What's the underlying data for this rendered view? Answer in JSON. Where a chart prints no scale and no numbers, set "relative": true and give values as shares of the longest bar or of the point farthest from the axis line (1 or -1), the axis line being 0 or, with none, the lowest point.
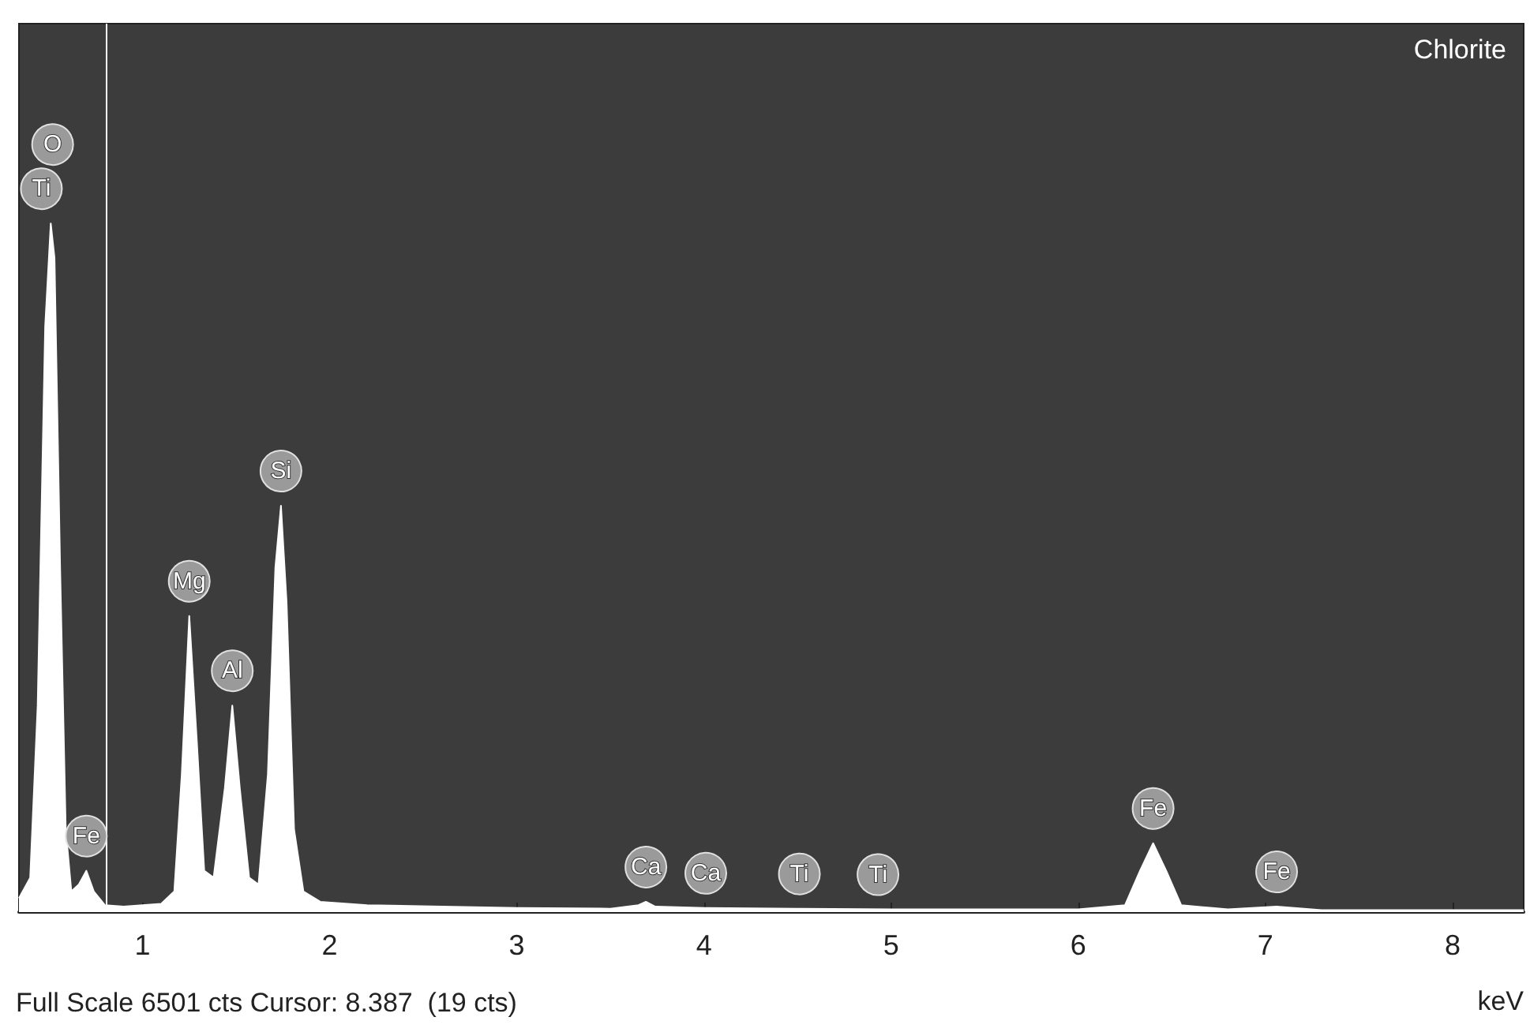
{
  "chart_data": {
    "type": "area",
    "title": "Chlorite",
    "xlabel": "keV",
    "relative": true,
    "grid": false,
    "marker": "none",
    "xlim": [
      0.34,
      8.38
    ],
    "xticks": [
      1,
      2,
      3,
      4,
      5,
      6,
      7,
      8
    ],
    "x": [
      0.34,
      0.4,
      0.44,
      0.48,
      0.51,
      0.53,
      0.56,
      0.59,
      0.62,
      0.66,
      0.7,
      0.74,
      0.8,
      0.9,
      1.0,
      1.1,
      1.17,
      1.21,
      1.25,
      1.29,
      1.33,
      1.38,
      1.44,
      1.48,
      1.52,
      1.57,
      1.62,
      1.67,
      1.71,
      1.74,
      1.77,
      1.81,
      1.86,
      1.95,
      2.2,
      2.6,
      3.0,
      3.5,
      3.65,
      3.69,
      3.74,
      4.0,
      4.5,
      5.0,
      5.5,
      6.0,
      6.25,
      6.33,
      6.4,
      6.47,
      6.55,
      6.8,
      7.06,
      7.3,
      8.0,
      8.38
    ],
    "series": [
      {
        "color": "#ffffff",
        "values": [
          0.02,
          0.05,
          0.3,
          0.85,
          1.0,
          0.95,
          0.5,
          0.12,
          0.03,
          0.04,
          0.06,
          0.03,
          0.01,
          0.008,
          0.01,
          0.012,
          0.03,
          0.2,
          0.43,
          0.25,
          0.06,
          0.05,
          0.18,
          0.3,
          0.18,
          0.05,
          0.04,
          0.2,
          0.5,
          0.59,
          0.45,
          0.12,
          0.03,
          0.015,
          0.01,
          0.008,
          0.006,
          0.005,
          0.01,
          0.015,
          0.008,
          0.006,
          0.005,
          0.004,
          0.004,
          0.004,
          0.01,
          0.06,
          0.1,
          0.06,
          0.01,
          0.004,
          0.008,
          0.003,
          0.003,
          0.003
        ]
      }
    ],
    "ref_lines": [
      {
        "axis": "x",
        "value": 0.81,
        "color": "#ffffff"
      }
    ],
    "annotations": [
      {
        "text": "O",
        "x": 0.52,
        "y": 1.0
      },
      {
        "text": "Ti",
        "x": 0.46,
        "y": 1.0
      },
      {
        "text": "Fe",
        "x": 0.7,
        "y": 0.06
      },
      {
        "text": "Mg",
        "x": 1.25,
        "y": 0.43
      },
      {
        "text": "Al",
        "x": 1.48,
        "y": 0.3
      },
      {
        "text": "Si",
        "x": 1.74,
        "y": 0.59
      },
      {
        "text": "Ca",
        "x": 3.69,
        "y": 0.015
      },
      {
        "text": "Ca",
        "x": 4.01,
        "y": 0.006
      },
      {
        "text": "Ti",
        "x": 4.51,
        "y": 0.005
      },
      {
        "text": "Ti",
        "x": 4.93,
        "y": 0.004
      },
      {
        "text": "Fe",
        "x": 6.4,
        "y": 0.1
      },
      {
        "text": "Fe",
        "x": 7.06,
        "y": 0.008
      },
      "Full Scale 6501 cts Cursor: 8.387  (19 cts)"
    ]
  }
}
